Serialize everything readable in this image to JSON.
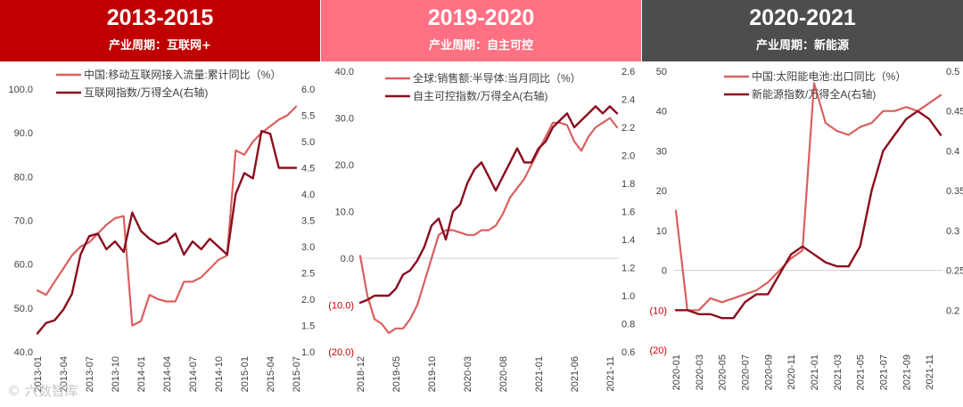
{
  "watermark": "© 六数智库",
  "chart_data": [
    {
      "type": "line",
      "header": {
        "title": "2013-2015",
        "subtitle": "产业周期：互联网+",
        "bg": "#c00000"
      },
      "x": [
        "2013-01",
        "2013-02",
        "2013-03",
        "2013-04",
        "2013-05",
        "2013-06",
        "2013-07",
        "2013-08",
        "2013-09",
        "2013-10",
        "2013-11",
        "2013-12",
        "2014-01",
        "2014-02",
        "2014-03",
        "2014-04",
        "2014-05",
        "2014-06",
        "2014-07",
        "2014-08",
        "2014-09",
        "2014-10",
        "2014-11",
        "2014-12",
        "2015-01",
        "2015-02",
        "2015-03",
        "2015-04",
        "2015-05",
        "2015-06",
        "2015-07"
      ],
      "xticks": [
        "2013-01",
        "2013-04",
        "2013-07",
        "2013-10",
        "2014-01",
        "2014-04",
        "2014-07",
        "2014-10",
        "2015-01",
        "2015-04",
        "2015-07"
      ],
      "ylim": [
        40,
        100
      ],
      "yticks": [
        {
          "v": 40,
          "label": "40.0"
        },
        {
          "v": 50,
          "label": "50.0"
        },
        {
          "v": 60,
          "label": "60.0"
        },
        {
          "v": 70,
          "label": "70.0"
        },
        {
          "v": 80,
          "label": "80.0"
        },
        {
          "v": 90,
          "label": "90.0"
        },
        {
          "v": 100,
          "label": "100.0"
        }
      ],
      "y2lim": [
        1.0,
        6.0
      ],
      "y2ticks": [
        {
          "v": 1.0,
          "label": "1.0"
        },
        {
          "v": 1.5,
          "label": "1.5"
        },
        {
          "v": 2.0,
          "label": "2.0"
        },
        {
          "v": 2.5,
          "label": "2.5"
        },
        {
          "v": 3.0,
          "label": "3.0"
        },
        {
          "v": 3.5,
          "label": "3.5"
        },
        {
          "v": 4.0,
          "label": "4.0"
        },
        {
          "v": 4.5,
          "label": "4.5"
        },
        {
          "v": 5.0,
          "label": "5.0"
        },
        {
          "v": 5.5,
          "label": "5.5"
        },
        {
          "v": 6.0,
          "label": "6.0"
        }
      ],
      "series": [
        {
          "name": "中国:移动互联网接入流量:累计同比（%）",
          "axis": "left",
          "color": "#d9605f",
          "values": [
            54,
            53,
            56,
            59,
            62,
            64,
            65,
            67,
            69,
            70.5,
            71,
            46,
            47,
            53,
            52,
            51.5,
            51.5,
            56,
            56,
            57,
            59,
            61,
            62,
            86,
            85,
            88,
            90,
            91.5,
            93,
            94,
            96
          ]
        },
        {
          "name": "互联网指数/万得全A(右轴)",
          "axis": "right",
          "color": "#8b0d1e",
          "values": [
            1.35,
            1.55,
            1.6,
            1.8,
            2.1,
            2.85,
            3.2,
            3.25,
            2.95,
            3.1,
            2.9,
            3.65,
            3.3,
            3.15,
            3.05,
            3.1,
            3.25,
            2.85,
            3.1,
            2.95,
            3.15,
            3.0,
            2.85,
            4.0,
            4.4,
            4.3,
            5.2,
            5.15,
            4.5,
            4.5,
            4.5
          ]
        }
      ]
    },
    {
      "type": "line",
      "header": {
        "title": "2019-2020",
        "subtitle": "产业周期：自主可控",
        "bg": "#ff7083"
      },
      "x": [
        "2018-12",
        "2019-01",
        "2019-02",
        "2019-03",
        "2019-04",
        "2019-05",
        "2019-06",
        "2019-07",
        "2019-08",
        "2019-09",
        "2019-10",
        "2019-11",
        "2019-12",
        "2020-01",
        "2020-02",
        "2020-03",
        "2020-04",
        "2020-05",
        "2020-06",
        "2020-07",
        "2020-08",
        "2020-09",
        "2020-10",
        "2020-11",
        "2020-12",
        "2021-01",
        "2021-02",
        "2021-03",
        "2021-04",
        "2021-05",
        "2021-06",
        "2021-07",
        "2021-08",
        "2021-09",
        "2021-10",
        "2021-11",
        "2021-12"
      ],
      "xticks": [
        "2018-12",
        "2019-05",
        "2019-10",
        "2020-03",
        "2020-08",
        "2021-01",
        "2021-06",
        "2021-11"
      ],
      "ylim": [
        -20,
        40
      ],
      "yticks": [
        {
          "v": -20,
          "label": "(20.0)",
          "neg": true
        },
        {
          "v": -10,
          "label": "(10.0)",
          "neg": true
        },
        {
          "v": 0,
          "label": "0.0"
        },
        {
          "v": 10,
          "label": "10.0"
        },
        {
          "v": 20,
          "label": "20.0"
        },
        {
          "v": 30,
          "label": "30.0"
        },
        {
          "v": 40,
          "label": "40.0"
        }
      ],
      "y2lim": [
        0.6,
        2.6
      ],
      "y2ticks": [
        {
          "v": 0.6,
          "label": "0.6"
        },
        {
          "v": 0.8,
          "label": "0.8"
        },
        {
          "v": 1.0,
          "label": "1.0"
        },
        {
          "v": 1.2,
          "label": "1.2"
        },
        {
          "v": 1.4,
          "label": "1.4"
        },
        {
          "v": 1.6,
          "label": "1.6"
        },
        {
          "v": 1.8,
          "label": "1.8"
        },
        {
          "v": 2.0,
          "label": "2.0"
        },
        {
          "v": 2.2,
          "label": "2.2"
        },
        {
          "v": 2.4,
          "label": "2.4"
        },
        {
          "v": 2.6,
          "label": "2.6"
        }
      ],
      "series": [
        {
          "name": "全球:销售额:半导体:当月同比（%）",
          "axis": "left",
          "color": "#d9605f",
          "values": [
            0.5,
            -8,
            -13,
            -14,
            -16,
            -15,
            -15,
            -13,
            -10,
            -5,
            0,
            5,
            6,
            6,
            5.5,
            5,
            5,
            6,
            6,
            7,
            9.5,
            13,
            15,
            17,
            20,
            23,
            26,
            29,
            29,
            28.5,
            25,
            23,
            26,
            28,
            29,
            30,
            28
          ]
        },
        {
          "name": "自主可控指数/万得全A(右轴)",
          "axis": "right",
          "color": "#8b0d1e",
          "values": [
            0.95,
            0.97,
            1.0,
            1.0,
            1.0,
            1.05,
            1.15,
            1.18,
            1.25,
            1.35,
            1.5,
            1.55,
            1.4,
            1.6,
            1.65,
            1.8,
            1.9,
            1.95,
            1.85,
            1.75,
            1.85,
            1.95,
            2.05,
            1.95,
            1.95,
            2.05,
            2.1,
            2.2,
            2.25,
            2.3,
            2.2,
            2.25,
            2.3,
            2.35,
            2.3,
            2.35,
            2.3
          ]
        }
      ]
    },
    {
      "type": "line",
      "header": {
        "title": "2020-2021",
        "subtitle": "产业周期：新能源",
        "bg": "#4d4d4d"
      },
      "x": [
        "2020-01",
        "2020-02",
        "2020-03",
        "2020-04",
        "2020-05",
        "2020-06",
        "2020-07",
        "2020-08",
        "2020-09",
        "2020-10",
        "2020-11",
        "2020-12",
        "2021-01",
        "2021-02",
        "2021-03",
        "2021-04",
        "2021-05",
        "2021-06",
        "2021-07",
        "2021-08",
        "2021-09",
        "2021-10",
        "2021-11",
        "2021-12"
      ],
      "xticks": [
        "2020-01",
        "2020-03",
        "2020-05",
        "2020-07",
        "2020-09",
        "2020-11",
        "2021-01",
        "2021-03",
        "2021-05",
        "2021-07",
        "2021-09",
        "2021-11"
      ],
      "ylim": [
        -20,
        50
      ],
      "yticks": [
        {
          "v": -20,
          "label": "(20)",
          "neg": true
        },
        {
          "v": -10,
          "label": "(10)",
          "neg": true
        },
        {
          "v": 0,
          "label": "0"
        },
        {
          "v": 10,
          "label": "10"
        },
        {
          "v": 20,
          "label": "20"
        },
        {
          "v": 30,
          "label": "30"
        },
        {
          "v": 40,
          "label": "40"
        },
        {
          "v": 50,
          "label": "50"
        }
      ],
      "y2lim": [
        0.15,
        0.5
      ],
      "y2ticks": [
        {
          "v": 0.2,
          "label": "0.2"
        },
        {
          "v": 0.25,
          "label": "0.25"
        },
        {
          "v": 0.3,
          "label": "0.3"
        },
        {
          "v": 0.35,
          "label": "0.35"
        },
        {
          "v": 0.4,
          "label": "0.4"
        },
        {
          "v": 0.45,
          "label": "0.45"
        },
        {
          "v": 0.5,
          "label": "0.5"
        }
      ],
      "series": [
        {
          "name": "中国:太阳能电池:出口同比（%）",
          "axis": "left",
          "color": "#d9605f",
          "values": [
            15,
            -10,
            -10,
            -7,
            -8,
            -7,
            -6,
            -5,
            -3,
            0,
            3,
            5,
            47,
            37,
            35,
            34,
            36,
            37,
            40,
            40,
            41,
            40,
            42,
            44
          ]
        },
        {
          "name": "新能源指数/万得全A(右轴)",
          "axis": "right",
          "color": "#8b0d1e",
          "values": [
            0.2,
            0.2,
            0.195,
            0.195,
            0.19,
            0.19,
            0.21,
            0.22,
            0.22,
            0.245,
            0.27,
            0.28,
            0.27,
            0.26,
            0.255,
            0.255,
            0.28,
            0.35,
            0.4,
            0.42,
            0.44,
            0.45,
            0.44,
            0.42
          ]
        }
      ]
    }
  ]
}
